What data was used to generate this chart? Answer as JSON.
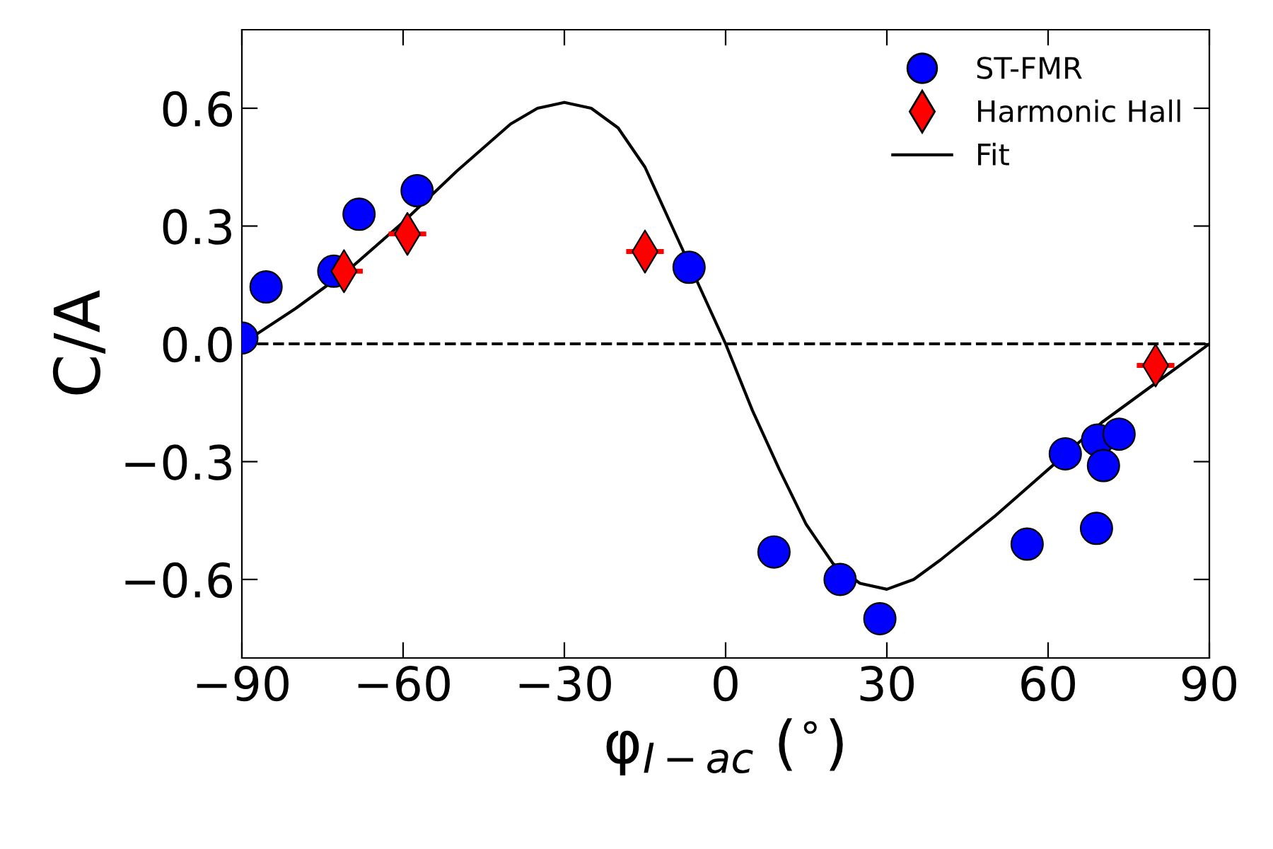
{
  "chart_data": {
    "type": "scatter",
    "xlabel": "φ$_{I−ac}$ ($^{∘}$)",
    "ylabel": "C/A",
    "xlim": [
      -90,
      90
    ],
    "xticks": [
      -90,
      -60,
      -30,
      0,
      30,
      60,
      90
    ],
    "ylim": [
      -0.8,
      0.8
    ],
    "yticks": [
      -0.6,
      -0.3,
      {
        "value": 0,
        "label": "0.0"
      },
      0.3,
      0.6
    ],
    "grid": false,
    "legend": "top right",
    "ref_lines": [
      {
        "axis": "y",
        "value": 0,
        "color": "#000000",
        "line_style": "dashed"
      }
    ],
    "series": [
      {
        "name": "ST-FMR",
        "marker": "circle",
        "color": "#0000ff",
        "x": [
          -90,
          -85.5,
          -72.9,
          -68.2,
          -57.4,
          -6.8,
          9.0,
          21.3,
          28.7,
          56.1,
          63.2,
          69.0,
          69.2,
          70.3,
          73.2
        ],
        "values": [
          0.015,
          0.145,
          0.185,
          0.33,
          0.39,
          0.195,
          -0.53,
          -0.6,
          -0.7,
          -0.51,
          -0.28,
          -0.47,
          -0.245,
          -0.31,
          -0.23
        ]
      },
      {
        "name": "Harmonic Hall",
        "marker": "diamond",
        "color": "#ff0000",
        "x": [
          -71.0,
          -59.2,
          -15.0,
          80.0
        ],
        "values": [
          0.185,
          0.28,
          0.235,
          -0.055
        ],
        "xerrors": [
          3.5,
          3.5,
          3.5,
          3.5
        ]
      },
      {
        "name": "Fit",
        "type": "line",
        "marker": "none",
        "line_style": "solid",
        "color": "#000000",
        "x": [
          -90,
          -80,
          -70,
          -60,
          -50,
          -40,
          -35,
          -30,
          -25,
          -20,
          -15,
          -10,
          -5,
          0,
          5,
          10,
          15,
          20,
          25,
          30,
          35,
          40,
          50,
          60,
          70,
          80,
          90
        ],
        "values": [
          0,
          0.09,
          0.19,
          0.31,
          0.44,
          0.56,
          0.6,
          0.615,
          0.6,
          0.55,
          0.45,
          0.3,
          0.15,
          0,
          -0.17,
          -0.32,
          -0.46,
          -0.56,
          -0.61,
          -0.625,
          -0.6,
          -0.55,
          -0.44,
          -0.32,
          -0.2,
          -0.1,
          0
        ]
      }
    ]
  }
}
